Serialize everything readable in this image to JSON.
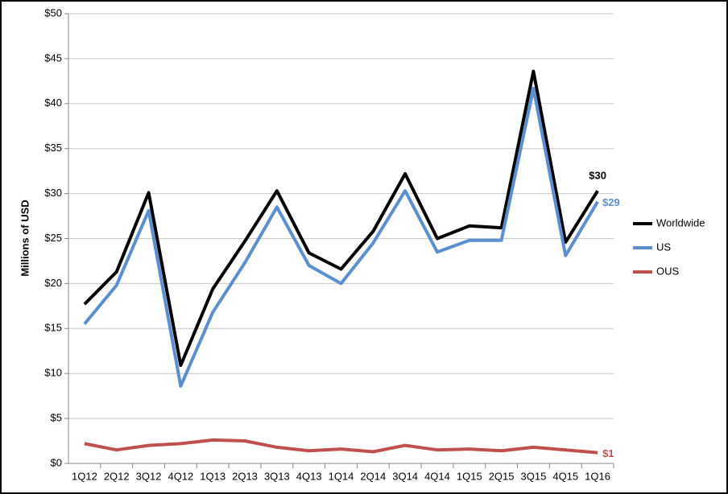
{
  "chart_data": {
    "type": "line",
    "y_label": "Millions of USD",
    "categories": [
      "1Q12",
      "2Q12",
      "3Q12",
      "4Q12",
      "1Q13",
      "2Q13",
      "3Q13",
      "4Q13",
      "1Q14",
      "2Q14",
      "3Q14",
      "4Q14",
      "1Q15",
      "2Q15",
      "3Q15",
      "4Q15",
      "1Q16"
    ],
    "series": [
      {
        "name": "Worldwide",
        "color": "#000000",
        "values": [
          17.7,
          21.3,
          30.1,
          10.9,
          19.4,
          24.7,
          30.3,
          23.4,
          21.6,
          25.8,
          32.2,
          25.0,
          26.4,
          26.2,
          43.6,
          24.6,
          30.3
        ],
        "value_labels": [
          null,
          null,
          null,
          null,
          null,
          null,
          null,
          null,
          null,
          null,
          null,
          null,
          null,
          null,
          null,
          null,
          "$30"
        ]
      },
      {
        "name": "US",
        "color": "#5b8fcf",
        "values": [
          15.5,
          19.8,
          28.1,
          8.6,
          16.8,
          22.3,
          28.5,
          22.0,
          20.0,
          24.5,
          30.3,
          23.5,
          24.8,
          24.8,
          41.7,
          23.1,
          29.1
        ],
        "value_labels": [
          null,
          null,
          null,
          null,
          null,
          null,
          null,
          null,
          null,
          null,
          null,
          null,
          null,
          null,
          null,
          null,
          "$29"
        ]
      },
      {
        "name": "OUS",
        "color": "#c0504d",
        "values": [
          2.2,
          1.5,
          2.0,
          2.2,
          2.6,
          2.5,
          1.8,
          1.4,
          1.6,
          1.3,
          2.0,
          1.5,
          1.6,
          1.4,
          1.8,
          1.5,
          1.2
        ],
        "value_labels": [
          null,
          null,
          null,
          null,
          null,
          null,
          null,
          null,
          null,
          null,
          null,
          null,
          null,
          null,
          null,
          null,
          "$1"
        ]
      }
    ],
    "ylim": [
      0,
      50
    ],
    "yticks": [
      {
        "value": 0,
        "label": "$0"
      },
      {
        "value": 5,
        "label": "$5"
      },
      {
        "value": 10,
        "label": "$10"
      },
      {
        "value": 15,
        "label": "$15"
      },
      {
        "value": 20,
        "label": "$20"
      },
      {
        "value": 25,
        "label": "$25"
      },
      {
        "value": 30,
        "label": "$30"
      },
      {
        "value": 35,
        "label": "$35"
      },
      {
        "value": 40,
        "label": "$40"
      },
      {
        "value": 45,
        "label": "$45"
      },
      {
        "value": 50,
        "label": "$50"
      }
    ],
    "grid": true,
    "legend": "right"
  }
}
